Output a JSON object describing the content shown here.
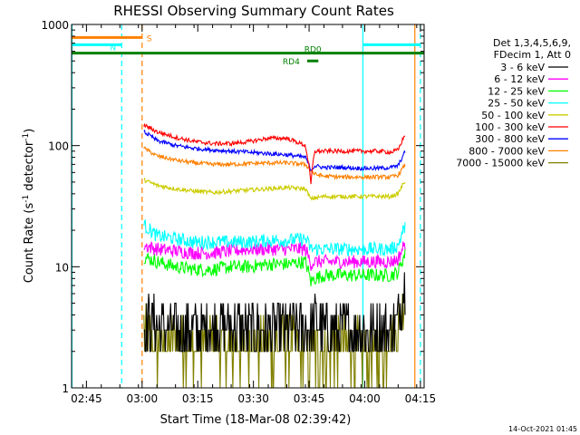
{
  "chart_data": {
    "type": "line",
    "title": "RHESSI Observing Summary Count Rates",
    "xlabel": "Start Time (18-Mar-08 02:39:42)",
    "ylabel_main": "Count Rate (s",
    "ylabel_sup1": "-1",
    "ylabel_mid": " detector",
    "ylabel_sup2": "-1",
    "ylabel_end": ")",
    "yscale": "log",
    "ylim": [
      1,
      1000
    ],
    "xlim_minutes": [
      2.0,
      97.0
    ],
    "x_ticks": [
      {
        "m": 6,
        "label": "02:45"
      },
      {
        "m": 21,
        "label": "03:00"
      },
      {
        "m": 36,
        "label": "03:15"
      },
      {
        "m": 51,
        "label": "03:30"
      },
      {
        "m": 66,
        "label": "03:45"
      },
      {
        "m": 81,
        "label": "04:00"
      },
      {
        "m": 96,
        "label": "04:15"
      }
    ],
    "y_ticks": [
      {
        "v": 1,
        "label": "1"
      },
      {
        "v": 10,
        "label": "10"
      },
      {
        "v": 100,
        "label": "100"
      },
      {
        "v": 1000,
        "label": "1000"
      }
    ],
    "legend_header": [
      "Det 1,3,4,5,6,9,",
      "FDecim 1, Att 0"
    ],
    "legend_placement": "right",
    "series": [
      {
        "name": "3 - 6 keV",
        "color": "#000000",
        "x": [
          21.5,
          25,
          30,
          35,
          40,
          45,
          50,
          55,
          60,
          65,
          66.5,
          67.5,
          70,
          75,
          80,
          85,
          88,
          90,
          92
        ],
        "y": [
          3.5,
          3.3,
          3.0,
          3.0,
          3.2,
          3.2,
          3.0,
          3.0,
          3.0,
          3.2,
          3.0,
          3.5,
          3.0,
          3.0,
          3.0,
          3.0,
          3.0,
          3.5,
          8
        ]
      },
      {
        "name": "6 - 12 keV",
        "color": "#ff00ff",
        "x": [
          21.5,
          25,
          30,
          35,
          40,
          45,
          50,
          55,
          60,
          65,
          66.5,
          67.5,
          70,
          75,
          80,
          85,
          88,
          90,
          92
        ],
        "y": [
          15,
          14,
          13.5,
          13,
          13,
          13.5,
          14,
          14,
          14,
          14,
          10.5,
          11,
          11,
          11,
          11,
          11,
          11,
          11.5,
          16
        ]
      },
      {
        "name": "12 - 25 keV",
        "color": "#00ff00",
        "x": [
          21.5,
          25,
          30,
          35,
          40,
          45,
          50,
          55,
          60,
          65,
          66.5,
          67.5,
          70,
          75,
          80,
          85,
          88,
          90,
          92
        ],
        "y": [
          12,
          11,
          10,
          9.5,
          9.5,
          10,
          10,
          10.5,
          10.5,
          11,
          7.5,
          8,
          8.5,
          8.5,
          8.5,
          8.5,
          8.5,
          9,
          13
        ]
      },
      {
        "name": "25 - 50 keV",
        "color": "#00ffff",
        "x": [
          21.5,
          25,
          30,
          35,
          40,
          45,
          50,
          55,
          60,
          65,
          66.5,
          67.5,
          70,
          75,
          80,
          85,
          88,
          90,
          92
        ],
        "y": [
          22,
          18,
          17,
          16,
          16,
          16,
          16,
          16.5,
          16.5,
          17,
          14,
          14,
          14,
          14,
          14,
          14,
          14,
          15,
          22
        ]
      },
      {
        "name": "50 - 100 keV",
        "color": "#cccc00",
        "x": [
          21.5,
          25,
          30,
          35,
          40,
          45,
          50,
          55,
          60,
          65,
          66.5,
          67.5,
          70,
          75,
          80,
          85,
          88,
          90,
          92
        ],
        "y": [
          52,
          47,
          44,
          42,
          41,
          42,
          43,
          44,
          45,
          44,
          36,
          37,
          38,
          38,
          38,
          38,
          38,
          40,
          52
        ]
      },
      {
        "name": "100 - 300 keV",
        "color": "#ff0000",
        "x": [
          21.5,
          25,
          30,
          35,
          40,
          45,
          50,
          55,
          60,
          65,
          66.5,
          67.5,
          70,
          75,
          80,
          85,
          88,
          90,
          92
        ],
        "y": [
          148,
          130,
          117,
          108,
          104,
          104,
          108,
          115,
          115,
          100,
          48,
          90,
          90,
          90,
          90,
          90,
          88,
          92,
          125
        ]
      },
      {
        "name": "300 - 800 keV",
        "color": "#0000ff",
        "x": [
          21.5,
          25,
          30,
          35,
          40,
          45,
          50,
          55,
          60,
          65,
          66.5,
          67.5,
          70,
          75,
          80,
          85,
          88,
          90,
          92
        ],
        "y": [
          130,
          110,
          100,
          95,
          92,
          90,
          88,
          86,
          84,
          80,
          63,
          68,
          66,
          66,
          65,
          65,
          66,
          68,
          90
        ]
      },
      {
        "name": "800 - 7000 keV",
        "color": "#ff8000",
        "x": [
          21.5,
          25,
          30,
          35,
          40,
          45,
          50,
          55,
          60,
          65,
          66.5,
          67.5,
          70,
          75,
          80,
          85,
          88,
          90,
          92
        ],
        "y": [
          95,
          82,
          76,
          72,
          70,
          70,
          71,
          72,
          72,
          70,
          62,
          58,
          56,
          55,
          55,
          55,
          55,
          57,
          70
        ]
      },
      {
        "name": "7000 - 15000 keV",
        "color": "#808000",
        "x": [
          21.5,
          25,
          30,
          35,
          40,
          45,
          50,
          55,
          60,
          65,
          66.5,
          67.5,
          70,
          75,
          80,
          85,
          88,
          90,
          92
        ],
        "y": [
          3.0,
          2.0,
          2.5,
          2.0,
          2.5,
          2.0,
          2.5,
          2.0,
          2.5,
          2.0,
          2.0,
          2.0,
          2.0,
          2.5,
          2.0,
          2.0,
          2.5,
          3.0,
          6
        ]
      }
    ],
    "attenuator_bars": [
      {
        "label": "S",
        "color": "#ff8000",
        "segments": [
          [
            2,
            21
          ]
        ],
        "level": 780
      },
      {
        "label": "N",
        "color": "#00ffff",
        "segments": [
          [
            2,
            15.5
          ],
          [
            80.5,
            96
          ]
        ],
        "level": 680
      },
      {
        "label": "RD0",
        "color": "#008000",
        "segments": [
          [
            2,
            97
          ]
        ],
        "level": 580
      },
      {
        "label": "RD4",
        "color": "#008000",
        "segments": [
          [
            65.5,
            68.5
          ]
        ],
        "level": 500
      }
    ],
    "vertical_markers": [
      {
        "m": 2.1,
        "color": "#00ffff",
        "style": "solid"
      },
      {
        "m": 15.5,
        "color": "#00ffff",
        "style": "dashed"
      },
      {
        "m": 21,
        "color": "#ff8000",
        "style": "dashed"
      },
      {
        "m": 80.5,
        "color": "#00ffff",
        "style": "solid"
      },
      {
        "m": 94.5,
        "color": "#ff8000",
        "style": "solid"
      },
      {
        "m": 96,
        "color": "#00ffff",
        "style": "dashed"
      }
    ],
    "timestamp": "14-Oct-2021 01:45"
  }
}
